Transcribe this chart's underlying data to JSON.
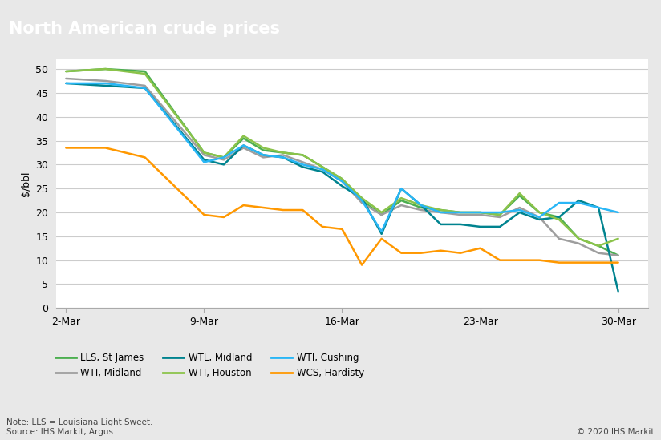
{
  "title": "North American crude prices",
  "ylabel": "$/bbl",
  "title_bg_color": "#58585a",
  "title_text_color": "#ffffff",
  "plot_bg_color": "#ffffff",
  "outer_bg_color": "#e8e8e8",
  "grid_color": "#cccccc",
  "note_text": "Note: LLS = Louisiana Light Sweet.\nSource: IHS Markit, Argus",
  "copyright_text": "© 2020 IHS Markit",
  "x_labels": [
    "2-Mar",
    "9-Mar",
    "16-Mar",
    "23-Mar",
    "30-Mar"
  ],
  "x_positions": [
    0,
    7,
    14,
    21,
    28
  ],
  "ylim": [
    0,
    52
  ],
  "yticks": [
    0,
    5,
    10,
    15,
    20,
    25,
    30,
    35,
    40,
    45,
    50
  ],
  "series": {
    "LLS, St James": {
      "color": "#4caf50",
      "linewidth": 1.8,
      "data_x": [
        0,
        2,
        4,
        7,
        8,
        9,
        10,
        11,
        12,
        13,
        14,
        15,
        16,
        17,
        18,
        19,
        20,
        21,
        22,
        23,
        24,
        25,
        26,
        27,
        28
      ],
      "data_y": [
        49.5,
        50.0,
        49.5,
        32.5,
        31.5,
        35.5,
        33.0,
        32.5,
        32.0,
        29.5,
        27.0,
        22.5,
        19.5,
        22.5,
        21.0,
        20.5,
        20.0,
        20.0,
        19.5,
        23.5,
        20.0,
        19.0,
        14.5,
        13.0,
        11.0
      ]
    },
    "WTI, Midland": {
      "color": "#9e9e9e",
      "linewidth": 1.8,
      "data_x": [
        0,
        2,
        4,
        7,
        8,
        9,
        10,
        11,
        12,
        13,
        14,
        15,
        16,
        17,
        18,
        19,
        20,
        21,
        22,
        23,
        24,
        25,
        26,
        27,
        28
      ],
      "data_y": [
        48.0,
        47.5,
        46.5,
        32.0,
        31.0,
        33.5,
        31.5,
        32.0,
        30.5,
        29.0,
        26.5,
        22.0,
        19.5,
        21.5,
        20.5,
        20.0,
        19.5,
        19.5,
        19.0,
        21.0,
        19.0,
        14.5,
        13.5,
        11.5,
        11.0
      ]
    },
    "WTL, Midland": {
      "color": "#00838f",
      "linewidth": 1.8,
      "data_x": [
        0,
        2,
        4,
        7,
        8,
        9,
        10,
        11,
        12,
        13,
        14,
        15,
        16,
        17,
        18,
        19,
        20,
        21,
        22,
        23,
        24,
        25,
        26,
        27,
        28
      ],
      "data_y": [
        47.0,
        46.5,
        46.0,
        31.0,
        30.0,
        34.0,
        32.0,
        31.5,
        29.5,
        28.5,
        25.5,
        23.0,
        15.5,
        25.0,
        21.5,
        17.5,
        17.5,
        17.0,
        17.0,
        20.0,
        18.5,
        19.0,
        22.5,
        21.0,
        3.5
      ]
    },
    "WTI, Houston": {
      "color": "#8bc34a",
      "linewidth": 1.8,
      "data_x": [
        0,
        2,
        4,
        7,
        8,
        9,
        10,
        11,
        12,
        13,
        14,
        15,
        16,
        17,
        18,
        19,
        20,
        21,
        22,
        23,
        24,
        25,
        26,
        27,
        28
      ],
      "data_y": [
        49.5,
        50.0,
        49.0,
        32.5,
        31.5,
        36.0,
        33.5,
        32.5,
        32.0,
        29.5,
        27.0,
        23.0,
        20.0,
        23.0,
        21.5,
        20.5,
        20.0,
        20.0,
        19.5,
        24.0,
        20.0,
        18.5,
        14.5,
        13.0,
        14.5
      ]
    },
    "WTI, Cushing": {
      "color": "#29b6f6",
      "linewidth": 1.8,
      "data_x": [
        0,
        2,
        4,
        7,
        8,
        9,
        10,
        11,
        12,
        13,
        14,
        15,
        16,
        17,
        18,
        19,
        20,
        21,
        22,
        23,
        24,
        25,
        26,
        27,
        28
      ],
      "data_y": [
        47.0,
        47.0,
        46.0,
        30.5,
        31.5,
        34.0,
        32.0,
        31.5,
        30.0,
        29.0,
        26.5,
        22.5,
        16.0,
        25.0,
        21.5,
        20.0,
        20.0,
        20.0,
        20.0,
        20.5,
        19.0,
        22.0,
        22.0,
        21.0,
        20.0
      ]
    },
    "WCS, Hardisty": {
      "color": "#ff9800",
      "linewidth": 1.8,
      "data_x": [
        0,
        2,
        4,
        7,
        8,
        9,
        10,
        11,
        12,
        13,
        14,
        15,
        16,
        17,
        18,
        19,
        20,
        21,
        22,
        23,
        24,
        25,
        26,
        27,
        28
      ],
      "data_y": [
        33.5,
        33.5,
        31.5,
        19.5,
        19.0,
        21.5,
        21.0,
        20.5,
        20.5,
        17.0,
        16.5,
        9.0,
        14.5,
        11.5,
        11.5,
        12.0,
        11.5,
        12.5,
        10.0,
        10.0,
        10.0,
        9.5,
        9.5,
        9.5,
        9.5
      ]
    }
  },
  "legend_order": [
    "LLS, St James",
    "WTI, Midland",
    "WTL, Midland",
    "WTI, Houston",
    "WTI, Cushing",
    "WCS, Hardisty"
  ]
}
